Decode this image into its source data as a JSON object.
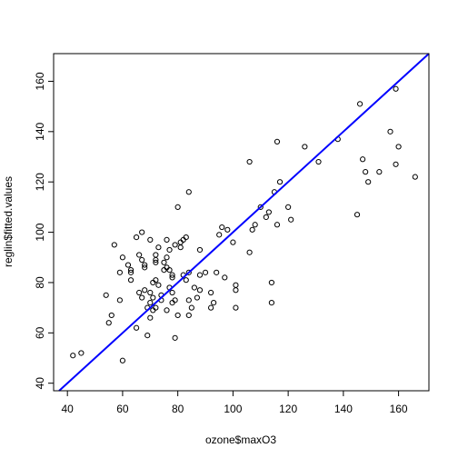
{
  "chart_data": {
    "type": "scatter",
    "title": "",
    "xlabel": "ozone$maxO3",
    "ylabel": "reglin$fitted.values",
    "xlim": [
      35,
      171
    ],
    "ylim": [
      37,
      171
    ],
    "x_ticks": [
      40,
      60,
      80,
      100,
      120,
      140,
      160
    ],
    "y_ticks": [
      40,
      60,
      80,
      100,
      120,
      140,
      160
    ],
    "grid": false,
    "legend": "none",
    "series": [
      {
        "marker": "open-circle",
        "color": "#000000",
        "points": [
          [
            42,
            51
          ],
          [
            45,
            52
          ],
          [
            54,
            75
          ],
          [
            55,
            64
          ],
          [
            56,
            67
          ],
          [
            57,
            95
          ],
          [
            59,
            84
          ],
          [
            59,
            73
          ],
          [
            60,
            90
          ],
          [
            60,
            49
          ],
          [
            62,
            87
          ],
          [
            63,
            81
          ],
          [
            63,
            85
          ],
          [
            63,
            84
          ],
          [
            65,
            98
          ],
          [
            65,
            62
          ],
          [
            66,
            91
          ],
          [
            66,
            76
          ],
          [
            67,
            89
          ],
          [
            67,
            100
          ],
          [
            67,
            74
          ],
          [
            68,
            87
          ],
          [
            68,
            77
          ],
          [
            68,
            86
          ],
          [
            69,
            59
          ],
          [
            69,
            70
          ],
          [
            70,
            97
          ],
          [
            70,
            66
          ],
          [
            70,
            72
          ],
          [
            70,
            76
          ],
          [
            71,
            69
          ],
          [
            71,
            74
          ],
          [
            71,
            80
          ],
          [
            72,
            91
          ],
          [
            72,
            89
          ],
          [
            72,
            81
          ],
          [
            72,
            88
          ],
          [
            72,
            70
          ],
          [
            73,
            94
          ],
          [
            73,
            79
          ],
          [
            74,
            73
          ],
          [
            74,
            75
          ],
          [
            75,
            85
          ],
          [
            75,
            88
          ],
          [
            76,
            97
          ],
          [
            76,
            69
          ],
          [
            76,
            86
          ],
          [
            76,
            90
          ],
          [
            77,
            85
          ],
          [
            77,
            93
          ],
          [
            77,
            78
          ],
          [
            78,
            83
          ],
          [
            78,
            82
          ],
          [
            78,
            76
          ],
          [
            78,
            72
          ],
          [
            79,
            95
          ],
          [
            79,
            73
          ],
          [
            79,
            58
          ],
          [
            80,
            67
          ],
          [
            80,
            110
          ],
          [
            81,
            94
          ],
          [
            81,
            96
          ],
          [
            82,
            97
          ],
          [
            82,
            83
          ],
          [
            83,
            98
          ],
          [
            83,
            81
          ],
          [
            84,
            84
          ],
          [
            84,
            73
          ],
          [
            84,
            67
          ],
          [
            84,
            116
          ],
          [
            85,
            70
          ],
          [
            86,
            78
          ],
          [
            87,
            74
          ],
          [
            88,
            93
          ],
          [
            88,
            83
          ],
          [
            88,
            77
          ],
          [
            90,
            84
          ],
          [
            92,
            76
          ],
          [
            92,
            70
          ],
          [
            93,
            72
          ],
          [
            94,
            84
          ],
          [
            95,
            99
          ],
          [
            96,
            102
          ],
          [
            97,
            82
          ],
          [
            98,
            101
          ],
          [
            100,
            96
          ],
          [
            101,
            79
          ],
          [
            101,
            77
          ],
          [
            101,
            70
          ],
          [
            106,
            128
          ],
          [
            106,
            92
          ],
          [
            107,
            101
          ],
          [
            108,
            103
          ],
          [
            110,
            110
          ],
          [
            112,
            106
          ],
          [
            113,
            108
          ],
          [
            114,
            80
          ],
          [
            114,
            72
          ],
          [
            115,
            116
          ],
          [
            116,
            103
          ],
          [
            116,
            136
          ],
          [
            117,
            120
          ],
          [
            120,
            110
          ],
          [
            121,
            105
          ],
          [
            126,
            134
          ],
          [
            131,
            128
          ],
          [
            138,
            137
          ],
          [
            145,
            107
          ],
          [
            146,
            151
          ],
          [
            147,
            129
          ],
          [
            148,
            124
          ],
          [
            149,
            120
          ],
          [
            153,
            124
          ],
          [
            157,
            140
          ],
          [
            159,
            157
          ],
          [
            159,
            127
          ],
          [
            160,
            134
          ],
          [
            166,
            122
          ]
        ]
      }
    ],
    "reference_line": {
      "intercept": 0,
      "slope": 1,
      "color": "#0000ff"
    }
  }
}
